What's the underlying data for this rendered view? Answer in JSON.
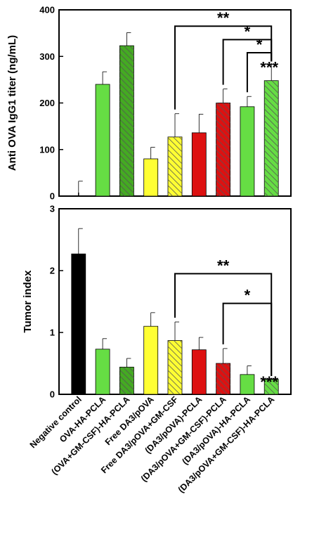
{
  "colors": {
    "black": "#000000",
    "light_green": "#66dd44",
    "dark_green": "#44aa22",
    "yellow": "#ffff33",
    "red": "#dd1111",
    "hatch": "#226611"
  },
  "categories": [
    "Negative control",
    "OVA-HA-PCLA",
    "(OVA+GM-CSF)-HA-PCLA",
    "Free DA3/pOVA",
    "Free DA3/pOVA+GM-CSF",
    "(DA3/pOVA)-PCLA",
    "(DA3/pOVA+GM-CSF)-PCLA",
    "(DA3/pOVA)-HA-PCLA",
    "(DA3/pOVA+GM-CSF)-HA-PCLA"
  ],
  "chart_data": [
    {
      "type": "bar",
      "ylabel": "Anti OVA IgG1 titer (ng/mL)",
      "ylim": [
        0,
        400
      ],
      "yticks": [
        0,
        100,
        200,
        300,
        400
      ],
      "values": [
        0,
        240,
        323,
        80,
        127,
        136,
        200,
        192,
        248
      ],
      "errors": [
        32,
        27,
        28,
        25,
        50,
        40,
        30,
        22,
        35
      ],
      "bar_colors": [
        "#000000",
        "#66dd44",
        "#44aa22",
        "#ffff33",
        "#ffff33",
        "#dd1111",
        "#dd1111",
        "#66dd44",
        "#66dd44"
      ],
      "hatched": [
        false,
        false,
        true,
        false,
        true,
        false,
        true,
        false,
        true
      ],
      "significance": [
        {
          "from": 4,
          "to": 8,
          "label": "**",
          "level": 365
        },
        {
          "from": 6,
          "to": 8,
          "label": "*",
          "level": 336
        },
        {
          "from": 7,
          "to": 8,
          "label": "*",
          "level": 308
        },
        {
          "from": 8,
          "to": 8,
          "label": "***",
          "level": 0
        }
      ]
    },
    {
      "type": "bar",
      "ylabel": "Tumor index",
      "ylim": [
        0,
        3
      ],
      "yticks": [
        0,
        1,
        2,
        3
      ],
      "values": [
        2.27,
        0.73,
        0.44,
        1.1,
        0.87,
        0.72,
        0.5,
        0.32,
        0.24
      ],
      "errors": [
        0.41,
        0.17,
        0.14,
        0.22,
        0.3,
        0.2,
        0.24,
        0.14,
        0.01
      ],
      "bar_colors": [
        "#000000",
        "#66dd44",
        "#44aa22",
        "#ffff33",
        "#ffff33",
        "#dd1111",
        "#dd1111",
        "#66dd44",
        "#66dd44"
      ],
      "hatched": [
        false,
        false,
        true,
        false,
        true,
        false,
        true,
        false,
        true
      ],
      "significance": [
        {
          "from": 4,
          "to": 8,
          "label": "**",
          "level": 1.95
        },
        {
          "from": 6,
          "to": 8,
          "label": "*",
          "level": 1.47
        },
        {
          "from": 8,
          "to": 8,
          "label": "***",
          "level": 0
        }
      ]
    }
  ]
}
